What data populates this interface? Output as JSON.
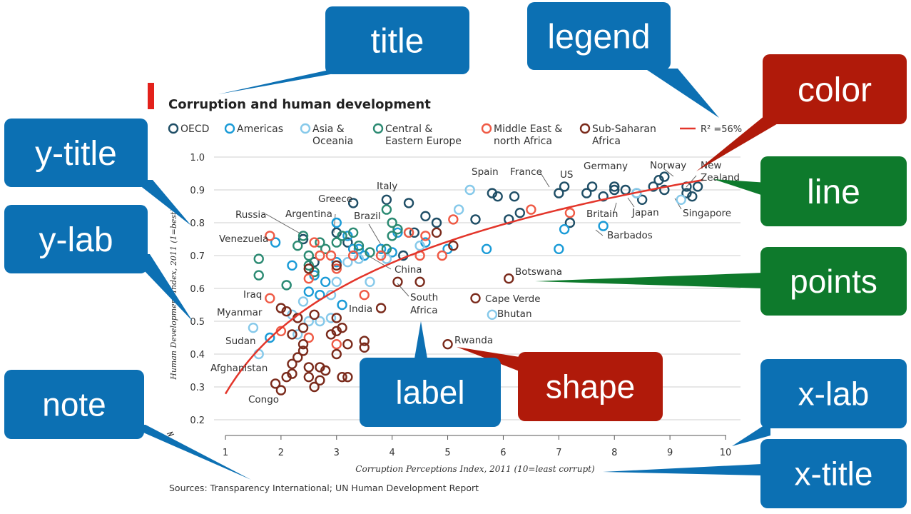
{
  "callouts": {
    "title": "title",
    "legend": "legend",
    "color": "color",
    "y_title": "y-title",
    "line": "line",
    "y_lab": "y-lab",
    "points": "points",
    "label": "label",
    "shape": "shape",
    "note": "note",
    "x_lab": "x-lab",
    "x_title": "x-title"
  },
  "colors": {
    "callout_blue": "#0c70b3",
    "callout_red": "#b01a0a",
    "callout_green": "#0e7a2c",
    "title_marker": "#e3211b",
    "fit_line": "#e3352a",
    "grid": "#cfcfcf"
  },
  "chart_data": {
    "type": "scatter",
    "title": "Corruption and human development",
    "xlabel": "Corruption Perceptions Index, 2011 (10=least corrupt)",
    "ylabel": "Human Development Index, 2011 (1=best)",
    "xlim": [
      1,
      10
    ],
    "ylim": [
      0.2,
      1.0
    ],
    "x_ticks": [
      "1",
      "2",
      "3",
      "4",
      "5",
      "6",
      "7",
      "8",
      "9",
      "10"
    ],
    "y_ticks": [
      "0.2",
      "0.3",
      "0.4",
      "0.5",
      "0.6",
      "0.7",
      "0.8",
      "0.9",
      "1.0"
    ],
    "grid": "horizontal",
    "legend_position": "top",
    "note": "Sources: Transparency International; UN Human Development Report",
    "fit": {
      "label": "R² =56%",
      "color": "#e3352a",
      "type": "log"
    },
    "series": [
      {
        "name": "OECD",
        "color": "#1f4e66",
        "points": [
          [
            2.4,
            0.75
          ],
          [
            3,
            0.77
          ],
          [
            3.3,
            0.86
          ],
          [
            3.9,
            0.87
          ],
          [
            4.3,
            0.86
          ],
          [
            4.6,
            0.82
          ],
          [
            4.4,
            0.77
          ],
          [
            4.8,
            0.8
          ],
          [
            5.5,
            0.81
          ],
          [
            5.8,
            0.89
          ],
          [
            5.9,
            0.88
          ],
          [
            6.2,
            0.88
          ],
          [
            6.3,
            0.83
          ],
          [
            6.1,
            0.81
          ],
          [
            7,
            0.89
          ],
          [
            7.1,
            0.91
          ],
          [
            7.2,
            0.8
          ],
          [
            7.5,
            0.89
          ],
          [
            7.6,
            0.91
          ],
          [
            7.8,
            0.88
          ],
          [
            8,
            0.91
          ],
          [
            8.0,
            0.9
          ],
          [
            8.2,
            0.9
          ],
          [
            8.4,
            0.89
          ],
          [
            8.5,
            0.87
          ],
          [
            8.7,
            0.91
          ],
          [
            8.8,
            0.93
          ],
          [
            8.9,
            0.94
          ],
          [
            8.9,
            0.9
          ],
          [
            9.3,
            0.91
          ],
          [
            9.4,
            0.88
          ],
          [
            9.5,
            0.91
          ],
          [
            9.3,
            0.89
          ],
          [
            4.2,
            0.7
          ],
          [
            3.2,
            0.74
          ],
          [
            2.6,
            0.68
          ]
        ]
      },
      {
        "name": "Americas",
        "color": "#1a9bd7",
        "points": [
          [
            1.9,
            0.74
          ],
          [
            1.8,
            0.45
          ],
          [
            2.2,
            0.67
          ],
          [
            2.5,
            0.59
          ],
          [
            2.7,
            0.58
          ],
          [
            2.8,
            0.62
          ],
          [
            3,
            0.8
          ],
          [
            3.2,
            0.76
          ],
          [
            3.3,
            0.72
          ],
          [
            3.4,
            0.72
          ],
          [
            3.5,
            0.7
          ],
          [
            3.8,
            0.72
          ],
          [
            4.0,
            0.71
          ],
          [
            4.1,
            0.77
          ],
          [
            4.6,
            0.74
          ],
          [
            5.0,
            0.72
          ],
          [
            5.7,
            0.72
          ],
          [
            7.0,
            0.72
          ],
          [
            7.1,
            0.78
          ],
          [
            7.8,
            0.79
          ],
          [
            3.1,
            0.55
          ],
          [
            2.6,
            0.64
          ],
          [
            3.0,
            0.68
          ]
        ]
      },
      {
        "name": "Asia & Oceania",
        "color": "#86c9ea",
        "points": [
          [
            1.5,
            0.48
          ],
          [
            2.1,
            0.61
          ],
          [
            2.2,
            0.52
          ],
          [
            2.3,
            0.46
          ],
          [
            2.5,
            0.5
          ],
          [
            2.7,
            0.5
          ],
          [
            2.9,
            0.58
          ],
          [
            3.0,
            0.62
          ],
          [
            3.2,
            0.68
          ],
          [
            3.4,
            0.69
          ],
          [
            3.6,
            0.62
          ],
          [
            3.9,
            0.69
          ],
          [
            4.5,
            0.73
          ],
          [
            5.2,
            0.84
          ],
          [
            5.4,
            0.9
          ],
          [
            5.8,
            0.52
          ],
          [
            8.4,
            0.89
          ],
          [
            9.2,
            0.87
          ],
          [
            2.4,
            0.56
          ],
          [
            2.9,
            0.51
          ],
          [
            1.6,
            0.4
          ]
        ]
      },
      {
        "name": "Central & Eastern Europe",
        "color": "#2b8a72",
        "points": [
          [
            1.6,
            0.69
          ],
          [
            1.6,
            0.64
          ],
          [
            2.4,
            0.76
          ],
          [
            2.3,
            0.73
          ],
          [
            2.5,
            0.7
          ],
          [
            2.6,
            0.65
          ],
          [
            2.7,
            0.74
          ],
          [
            2.8,
            0.72
          ],
          [
            3.0,
            0.74
          ],
          [
            3.1,
            0.76
          ],
          [
            3.3,
            0.77
          ],
          [
            3.4,
            0.73
          ],
          [
            3.6,
            0.71
          ],
          [
            3.9,
            0.84
          ],
          [
            4.0,
            0.8
          ],
          [
            4.1,
            0.78
          ],
          [
            4.0,
            0.76
          ],
          [
            4.3,
            0.77
          ],
          [
            3.9,
            0.72
          ],
          [
            2.1,
            0.61
          ],
          [
            2.5,
            0.67
          ]
        ]
      },
      {
        "name": "Middle East & north Africa",
        "color": "#ef5a45",
        "points": [
          [
            1.8,
            0.76
          ],
          [
            1.8,
            0.57
          ],
          [
            2.0,
            0.47
          ],
          [
            2.5,
            0.63
          ],
          [
            2.6,
            0.74
          ],
          [
            2.7,
            0.7
          ],
          [
            2.9,
            0.7
          ],
          [
            3.0,
            0.66
          ],
          [
            3.0,
            0.43
          ],
          [
            3.3,
            0.7
          ],
          [
            3.5,
            0.58
          ],
          [
            3.8,
            0.7
          ],
          [
            4.3,
            0.77
          ],
          [
            4.5,
            0.7
          ],
          [
            4.9,
            0.7
          ],
          [
            5.1,
            0.81
          ],
          [
            6.5,
            0.84
          ],
          [
            7.2,
            0.83
          ],
          [
            4.6,
            0.76
          ],
          [
            2.5,
            0.45
          ]
        ]
      },
      {
        "name": "Sub-Saharan Africa",
        "color": "#7a2a1b",
        "points": [
          [
            2.0,
            0.29
          ],
          [
            1.9,
            0.31
          ],
          [
            2.1,
            0.33
          ],
          [
            2.2,
            0.34
          ],
          [
            2.3,
            0.39
          ],
          [
            2.2,
            0.37
          ],
          [
            2.4,
            0.41
          ],
          [
            2.5,
            0.36
          ],
          [
            2.5,
            0.33
          ],
          [
            2.6,
            0.3
          ],
          [
            2.7,
            0.36
          ],
          [
            2.8,
            0.35
          ],
          [
            2.7,
            0.32
          ],
          [
            2.9,
            0.46
          ],
          [
            3.0,
            0.47
          ],
          [
            3.0,
            0.4
          ],
          [
            3.1,
            0.33
          ],
          [
            3.2,
            0.33
          ],
          [
            3.2,
            0.43
          ],
          [
            3.5,
            0.44
          ],
          [
            3.5,
            0.42
          ],
          [
            2.4,
            0.43
          ],
          [
            2.4,
            0.48
          ],
          [
            2.1,
            0.53
          ],
          [
            2.0,
            0.54
          ],
          [
            2.3,
            0.51
          ],
          [
            2.6,
            0.52
          ],
          [
            3.0,
            0.51
          ],
          [
            3.1,
            0.48
          ],
          [
            3.0,
            0.67
          ],
          [
            2.5,
            0.66
          ],
          [
            3.8,
            0.54
          ],
          [
            4.1,
            0.62
          ],
          [
            4.5,
            0.62
          ],
          [
            4.8,
            0.77
          ],
          [
            5.1,
            0.73
          ],
          [
            5.0,
            0.43
          ],
          [
            5.5,
            0.57
          ],
          [
            6.1,
            0.63
          ],
          [
            2.2,
            0.46
          ]
        ]
      }
    ],
    "labels": [
      {
        "text": "Venezuela",
        "x": 1.9,
        "y": 0.76
      },
      {
        "text": "Russia",
        "x": 2.4,
        "y": 0.76
      },
      {
        "text": "Argentina",
        "x": 3.0,
        "y": 0.8
      },
      {
        "text": "Greece",
        "x": 3.4,
        "y": 0.86
      },
      {
        "text": "Brazil",
        "x": 3.7,
        "y": 0.72
      },
      {
        "text": "Italy",
        "x": 3.9,
        "y": 0.87
      },
      {
        "text": "China",
        "x": 3.6,
        "y": 0.69
      },
      {
        "text": "India",
        "x": 3.1,
        "y": 0.55
      },
      {
        "text": "South",
        "x": 4.0,
        "y": 0.62
      },
      {
        "text": "Africa",
        "x": 4.0,
        "y": 0.62
      },
      {
        "text": "Iraq",
        "x": 1.8,
        "y": 0.57
      },
      {
        "text": "Myanmar",
        "x": 1.5,
        "y": 0.48
      },
      {
        "text": "Sudan",
        "x": 1.6,
        "y": 0.4
      },
      {
        "text": "Afghanistan",
        "x": 1.5,
        "y": 0.35
      },
      {
        "text": "Congo",
        "x": 2.0,
        "y": 0.29
      },
      {
        "text": "Spain",
        "x": 6.2,
        "y": 0.88
      },
      {
        "text": "France",
        "x": 7.0,
        "y": 0.89
      },
      {
        "text": "US",
        "x": 7.1,
        "y": 0.91
      },
      {
        "text": "Germany",
        "x": 8.0,
        "y": 0.91
      },
      {
        "text": "Norway",
        "x": 9.0,
        "y": 0.94
      },
      {
        "text": "New",
        "x": 9.5,
        "y": 0.91
      },
      {
        "text": "Zealand",
        "x": 9.5,
        "y": 0.91
      },
      {
        "text": "Britain",
        "x": 7.8,
        "y": 0.86
      },
      {
        "text": "Japan",
        "x": 8.0,
        "y": 0.9
      },
      {
        "text": "Singapore",
        "x": 9.2,
        "y": 0.87
      },
      {
        "text": "Barbados",
        "x": 7.8,
        "y": 0.79
      },
      {
        "text": "Botswana",
        "x": 6.1,
        "y": 0.63
      },
      {
        "text": "Cape Verde",
        "x": 5.5,
        "y": 0.57
      },
      {
        "text": "Bhutan",
        "x": 5.8,
        "y": 0.52
      },
      {
        "text": "Rwanda",
        "x": 5.0,
        "y": 0.43
      }
    ]
  }
}
